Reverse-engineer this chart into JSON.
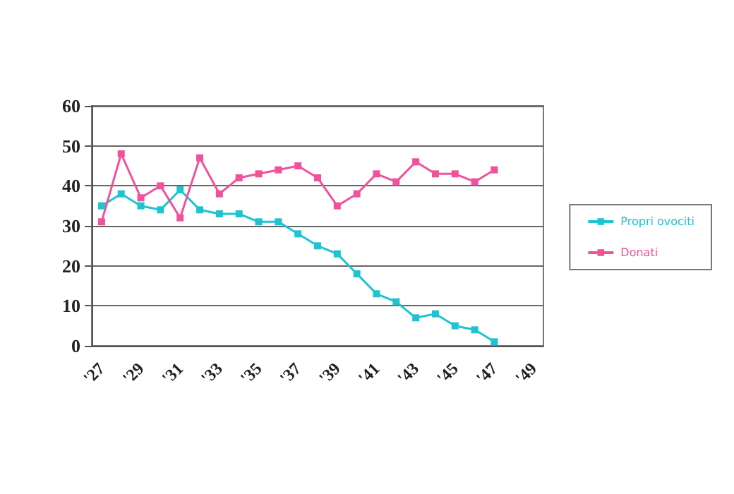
{
  "chart_data": {
    "type": "line",
    "categories": [
      "'27",
      null,
      "'29",
      null,
      "'31",
      null,
      "'33",
      null,
      "'35",
      null,
      "'37",
      null,
      "'39",
      null,
      "'41",
      null,
      "'43",
      null,
      "'45",
      null,
      "'47",
      null,
      "'49"
    ],
    "series": [
      {
        "name": "Propri ovociti",
        "color": "#1fc4d0",
        "values": [
          35,
          38,
          35,
          34,
          39,
          34,
          33,
          33,
          31,
          31,
          28,
          25,
          23,
          18,
          13,
          11,
          7,
          8,
          5,
          4,
          1,
          null,
          null
        ]
      },
      {
        "name": "Donati",
        "color": "#f0529c",
        "values": [
          31,
          48,
          37,
          40,
          32,
          47,
          38,
          42,
          43,
          44,
          45,
          42,
          35,
          38,
          43,
          41,
          46,
          43,
          43,
          41,
          44,
          null,
          null
        ]
      }
    ],
    "ylim": [
      0,
      60
    ],
    "yticks": [
      0,
      10,
      20,
      30,
      40,
      50,
      60
    ],
    "grid": "y",
    "legend": "right",
    "marker": "square",
    "line_style": "solid"
  }
}
